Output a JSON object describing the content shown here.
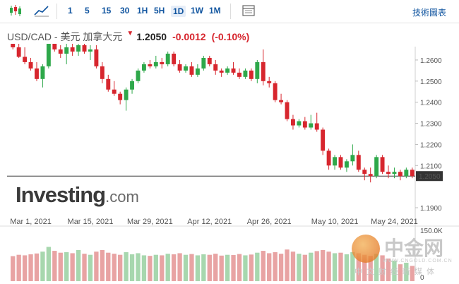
{
  "toolbar": {
    "timeframes": [
      "1",
      "5",
      "15",
      "30",
      "1H",
      "5H",
      "1D",
      "1W",
      "1M"
    ],
    "active_timeframe": "1D",
    "advanced_label": "技術圖表"
  },
  "quote": {
    "symbol": "USD/CAD - 美元 加拿大元",
    "price": "1.2050",
    "change": "-0.0012",
    "change_pct": "(-0.10%)"
  },
  "branding": {
    "logo_main": "Investing",
    "logo_domain": ".com"
  },
  "watermark": {
    "main": "中金网",
    "url": "WWW.CNGOLD.COM.CN",
    "sub": "中文财经新媒体"
  },
  "colors": {
    "up": "#2ea84a",
    "down": "#d7262e",
    "up_volume": "#e8a3a3",
    "down_volume": "#a7d7ae",
    "axis_text": "#555555",
    "price_tag": "#333333"
  },
  "chart_data": {
    "type": "candlestick",
    "title": "USD/CAD",
    "price_axis": {
      "ticks": [
        "1.2600",
        "1.2500",
        "1.2400",
        "1.2300",
        "1.2200",
        "1.2100",
        "1.1900"
      ],
      "ylim": [
        1.188,
        1.265
      ],
      "current": "1.2050"
    },
    "x_ticks": [
      "Mar 1, 2021",
      "Mar 15, 2021",
      "Mar 29, 2021",
      "Apr 12, 2021",
      "Apr 26, 2021",
      "May 10, 2021",
      "May 24, 2021"
    ],
    "volume_axis": {
      "ticks": [
        "150.0K",
        "0"
      ],
      "max": 150000
    },
    "ohlc": [
      [
        1.269,
        1.271,
        1.265,
        1.266
      ],
      [
        1.266,
        1.27,
        1.261,
        1.2615
      ],
      [
        1.2615,
        1.266,
        1.258,
        1.259
      ],
      [
        1.259,
        1.261,
        1.255,
        1.256
      ],
      [
        1.256,
        1.259,
        1.25,
        1.251
      ],
      [
        1.251,
        1.258,
        1.247,
        1.257
      ],
      [
        1.257,
        1.273,
        1.256,
        1.272
      ],
      [
        1.272,
        1.273,
        1.264,
        1.265
      ],
      [
        1.265,
        1.267,
        1.261,
        1.263
      ],
      [
        1.263,
        1.268,
        1.258,
        1.266
      ],
      [
        1.266,
        1.269,
        1.262,
        1.264
      ],
      [
        1.264,
        1.272,
        1.262,
        1.267
      ],
      [
        1.267,
        1.269,
        1.263,
        1.264
      ],
      [
        1.264,
        1.267,
        1.26,
        1.265
      ],
      [
        1.265,
        1.267,
        1.256,
        1.257
      ],
      [
        1.257,
        1.259,
        1.249,
        1.251
      ],
      [
        1.251,
        1.253,
        1.245,
        1.246
      ],
      [
        1.246,
        1.25,
        1.243,
        1.244
      ],
      [
        1.244,
        1.245,
        1.239,
        1.241
      ],
      [
        1.241,
        1.247,
        1.236,
        1.246
      ],
      [
        1.246,
        1.251,
        1.244,
        1.25
      ],
      [
        1.25,
        1.256,
        1.249,
        1.255
      ],
      [
        1.255,
        1.259,
        1.254,
        1.258
      ],
      [
        1.258,
        1.26,
        1.256,
        1.257
      ],
      [
        1.257,
        1.262,
        1.256,
        1.259
      ],
      [
        1.259,
        1.261,
        1.256,
        1.258
      ],
      [
        1.258,
        1.264,
        1.257,
        1.263
      ],
      [
        1.263,
        1.264,
        1.257,
        1.258
      ],
      [
        1.258,
        1.26,
        1.254,
        1.255
      ],
      [
        1.255,
        1.258,
        1.254,
        1.257
      ],
      [
        1.257,
        1.259,
        1.252,
        1.253
      ],
      [
        1.253,
        1.258,
        1.252,
        1.256
      ],
      [
        1.256,
        1.262,
        1.255,
        1.261
      ],
      [
        1.261,
        1.262,
        1.257,
        1.258
      ],
      [
        1.258,
        1.26,
        1.253,
        1.255
      ],
      [
        1.255,
        1.256,
        1.252,
        1.254
      ],
      [
        1.254,
        1.257,
        1.253,
        1.256
      ],
      [
        1.256,
        1.259,
        1.253,
        1.254
      ],
      [
        1.254,
        1.256,
        1.251,
        1.252
      ],
      [
        1.252,
        1.256,
        1.251,
        1.255
      ],
      [
        1.255,
        1.256,
        1.25,
        1.251
      ],
      [
        1.251,
        1.26,
        1.249,
        1.259
      ],
      [
        1.259,
        1.265,
        1.248,
        1.25
      ],
      [
        1.25,
        1.252,
        1.247,
        1.249
      ],
      [
        1.249,
        1.25,
        1.24,
        1.241
      ],
      [
        1.241,
        1.244,
        1.239,
        1.24
      ],
      [
        1.24,
        1.241,
        1.231,
        1.232
      ],
      [
        1.232,
        1.234,
        1.227,
        1.229
      ],
      [
        1.229,
        1.232,
        1.228,
        1.231
      ],
      [
        1.231,
        1.233,
        1.227,
        1.228
      ],
      [
        1.228,
        1.234,
        1.227,
        1.23
      ],
      [
        1.23,
        1.235,
        1.226,
        1.227
      ],
      [
        1.227,
        1.228,
        1.215,
        1.217
      ],
      [
        1.217,
        1.218,
        1.208,
        1.21
      ],
      [
        1.21,
        1.215,
        1.208,
        1.214
      ],
      [
        1.214,
        1.215,
        1.208,
        1.209
      ],
      [
        1.209,
        1.213,
        1.207,
        1.212
      ],
      [
        1.212,
        1.22,
        1.21,
        1.215
      ],
      [
        1.215,
        1.217,
        1.207,
        1.208
      ],
      [
        1.208,
        1.209,
        1.203,
        1.206
      ],
      [
        1.206,
        1.209,
        1.202,
        1.205
      ],
      [
        1.205,
        1.215,
        1.204,
        1.214
      ],
      [
        1.214,
        1.215,
        1.206,
        1.207
      ],
      [
        1.207,
        1.21,
        1.204,
        1.206
      ],
      [
        1.206,
        1.209,
        1.204,
        1.207
      ],
      [
        1.207,
        1.208,
        1.203,
        1.205
      ],
      [
        1.205,
        1.209,
        1.204,
        1.208
      ],
      [
        1.208,
        1.209,
        1.204,
        1.205
      ]
    ],
    "volume": [
      95000,
      100000,
      98000,
      102000,
      105000,
      112000,
      130000,
      115000,
      108000,
      110000,
      106000,
      118000,
      104000,
      100000,
      112000,
      118000,
      108000,
      104000,
      100000,
      110000,
      102000,
      106000,
      98000,
      96000,
      100000,
      98000,
      104000,
      102000,
      106000,
      100000,
      103000,
      98000,
      102000,
      100000,
      104000,
      97000,
      100000,
      99000,
      103000,
      98000,
      101000,
      108000,
      115000,
      106000,
      110000,
      104000,
      120000,
      112000,
      104000,
      100000,
      108000,
      114000,
      118000,
      112000,
      106000,
      108000,
      102000,
      110000,
      106000,
      100000,
      96000,
      104000,
      98000,
      86000,
      78000,
      64000,
      70000,
      58000
    ]
  }
}
